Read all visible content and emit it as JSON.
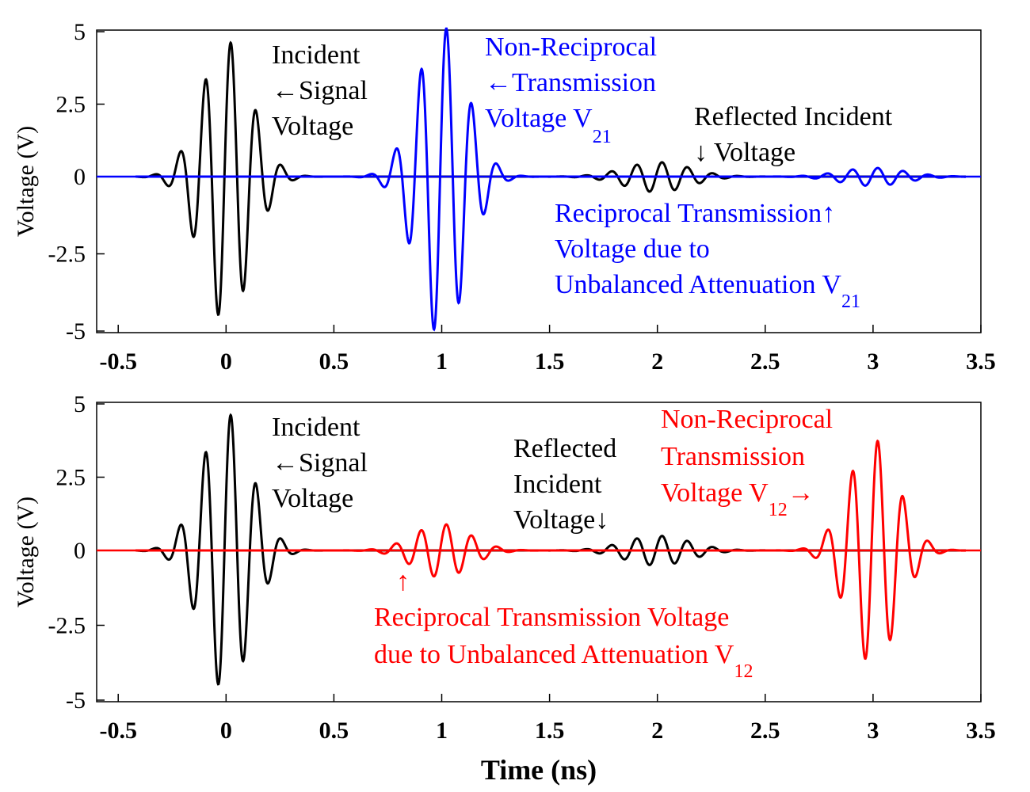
{
  "chart_data": [
    {
      "type": "line",
      "id": "top",
      "ylabel": "Voltage (V)",
      "xlabel": "",
      "xlim": [
        -0.6,
        3.5
      ],
      "ylim": [
        -5.2,
        5.1
      ],
      "xticks": [
        -0.5,
        0,
        0.5,
        1,
        1.5,
        2,
        2.5,
        3,
        3.5
      ],
      "xtick_labels": [
        "-0.5",
        "0",
        "0.5",
        "1",
        "1.5",
        "2",
        "2.5",
        "3",
        "3.5"
      ],
      "yticks": [
        5,
        2.5,
        0,
        -2.5,
        -5
      ],
      "ytick_labels": [
        "5",
        "2.5",
        "0",
        "-2.5",
        "-5"
      ],
      "grid": false,
      "series": [
        {
          "color": "#000000",
          "pulses": [
            {
              "center": 0.0,
              "amplitude": 4.7,
              "sigma": 0.115,
              "freq": 8.5
            },
            {
              "center": 2.0,
              "amplitude": 0.5,
              "sigma": 0.15,
              "freq": 8.5
            }
          ]
        },
        {
          "color": "#0000ff",
          "pulses": [
            {
              "center": 1.0,
              "amplitude": 5.2,
              "sigma": 0.115,
              "freq": 8.5
            },
            {
              "center": 3.0,
              "amplitude": 0.3,
              "sigma": 0.15,
              "freq": 8.5
            }
          ]
        }
      ],
      "annotations": [
        {
          "lines": [
            "Incident",
            "←Signal",
            "Voltage"
          ],
          "color": "#000000"
        },
        {
          "lines": [
            "Non-Reciprocal",
            "←Transmission",
            "Voltage V"
          ],
          "sub": "21",
          "color": "#0000ff"
        },
        {
          "lines": [
            "Reflected Incident",
            "↓ Voltage"
          ],
          "color": "#000000"
        },
        {
          "lines": [
            "Reciprocal Transmission↑",
            "Voltage due to",
            "Unbalanced Attenuation V"
          ],
          "sub": "21",
          "color": "#0000ff"
        }
      ]
    },
    {
      "type": "line",
      "id": "bottom",
      "ylabel": "Voltage (V)",
      "xlabel": "Time (ns)",
      "xlim": [
        -0.6,
        3.5
      ],
      "ylim": [
        -5.0,
        5.0
      ],
      "xticks": [
        -0.5,
        0,
        0.5,
        1,
        1.5,
        2,
        2.5,
        3,
        3.5
      ],
      "xtick_labels": [
        "-0.5",
        "0",
        "0.5",
        "1",
        "1.5",
        "2",
        "2.5",
        "3",
        "3.5"
      ],
      "yticks": [
        5,
        2.5,
        0,
        -2.5,
        -5
      ],
      "ytick_labels": [
        "5",
        "2.5",
        "0",
        "-2.5",
        "-5"
      ],
      "grid": false,
      "series": [
        {
          "color": "#000000",
          "pulses": [
            {
              "center": 0.0,
              "amplitude": 4.7,
              "sigma": 0.115,
              "freq": 8.5
            },
            {
              "center": 2.0,
              "amplitude": 0.5,
              "sigma": 0.15,
              "freq": 8.5
            }
          ]
        },
        {
          "color": "#ff0000",
          "pulses": [
            {
              "center": 1.0,
              "amplitude": 0.9,
              "sigma": 0.13,
              "freq": 8.5
            },
            {
              "center": 3.0,
              "amplitude": 3.8,
              "sigma": 0.115,
              "freq": 8.5
            }
          ]
        }
      ],
      "annotations": [
        {
          "lines": [
            "Incident",
            "←Signal",
            "Voltage"
          ],
          "color": "#000000"
        },
        {
          "lines": [
            "Reflected",
            "Incident",
            "Voltage↓"
          ],
          "color": "#000000"
        },
        {
          "lines": [
            "Non-Reciprocal",
            "Transmission",
            "Voltage V"
          ],
          "sub": "12",
          "arrow": "→",
          "color": "#ff0000"
        },
        {
          "lines": [
            "↑"
          ],
          "color": "#ff0000"
        },
        {
          "lines": [
            "Reciprocal Transmission Voltage",
            "due to Unbalanced Attenuation V"
          ],
          "sub": "12",
          "color": "#ff0000"
        }
      ]
    }
  ]
}
